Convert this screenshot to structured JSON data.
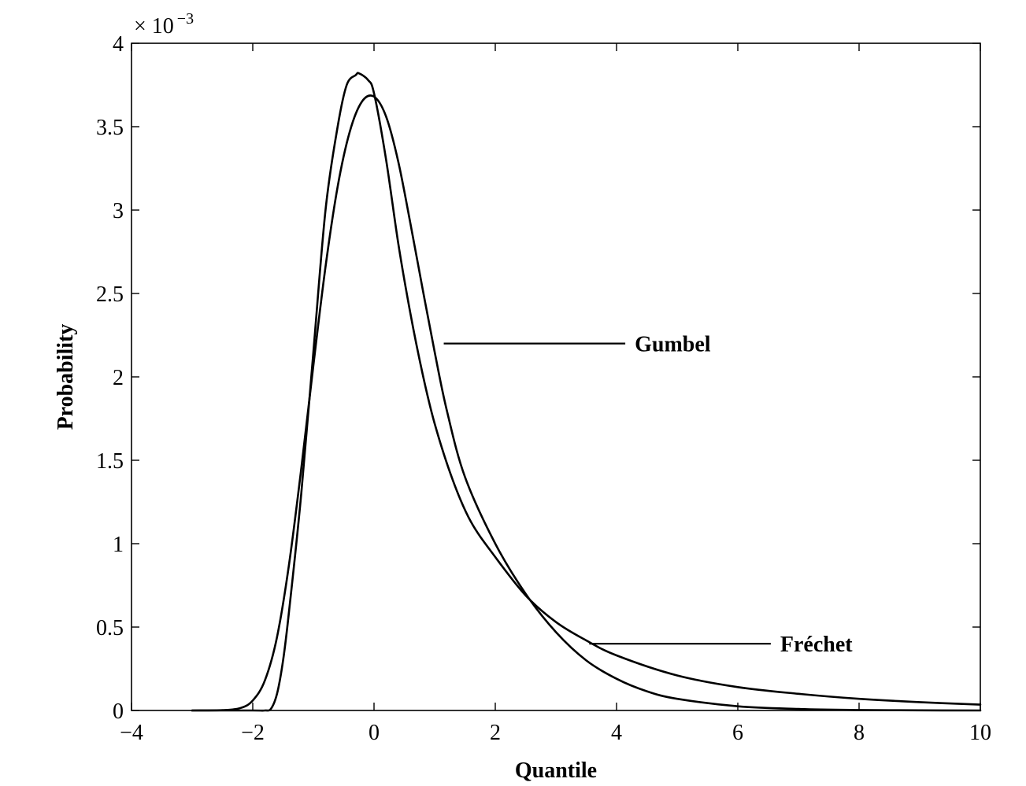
{
  "chart_data": {
    "type": "line",
    "xlabel": "Quantile",
    "ylabel": "Probability",
    "xlim": [
      -4,
      10
    ],
    "ylim": [
      0,
      4
    ],
    "xticks": [
      -4,
      -2,
      0,
      2,
      4,
      6,
      8,
      10
    ],
    "xtick_labels": [
      "−4",
      "−2",
      "0",
      "2",
      "4",
      "6",
      "8",
      "10"
    ],
    "yticks": [
      0,
      0.5,
      1,
      1.5,
      2,
      2.5,
      3,
      3.5,
      4
    ],
    "ytick_labels": [
      "0",
      "0.5",
      "1",
      "1.5",
      "2",
      "2.5",
      "3",
      "3.5",
      "4"
    ],
    "y_multiplier": {
      "base": "× 10",
      "exponent": "−3"
    },
    "grid": false,
    "legend": "none",
    "series": [
      {
        "name": "Gumbel",
        "x": [
          -3,
          -2.5,
          -2.2,
          -2.0,
          -1.8,
          -1.6,
          -1.4,
          -1.2,
          -1.0,
          -0.8,
          -0.6,
          -0.4,
          -0.2,
          0.0,
          0.2,
          0.4,
          0.6,
          0.8,
          1.0,
          1.2,
          1.5,
          2.0,
          2.5,
          3.0,
          3.5,
          4.0,
          4.5,
          5.0,
          6.0,
          7.0,
          8.0,
          9.0,
          10.0
        ],
        "values": [
          0.0,
          0.002,
          0.015,
          0.06,
          0.18,
          0.44,
          0.88,
          1.45,
          2.07,
          2.66,
          3.14,
          3.47,
          3.65,
          3.68,
          3.56,
          3.29,
          2.92,
          2.53,
          2.15,
          1.8,
          1.4,
          1.0,
          0.7,
          0.47,
          0.3,
          0.19,
          0.115,
          0.07,
          0.025,
          0.009,
          0.003,
          0.001,
          0.0
        ],
        "label_anchor": [
          1.15,
          2.2
        ],
        "label_position": [
          4.3,
          2.2
        ]
      },
      {
        "name": "Fréchet",
        "x": [
          -3,
          -2.0,
          -1.8,
          -1.7,
          -1.6,
          -1.5,
          -1.4,
          -1.2,
          -1.0,
          -0.8,
          -0.6,
          -0.45,
          -0.3,
          -0.25,
          -0.1,
          0.0,
          0.2,
          0.4,
          0.6,
          0.8,
          1.0,
          1.3,
          1.6,
          2.0,
          2.5,
          3.0,
          3.5,
          4.0,
          5.0,
          6.0,
          7.0,
          8.0,
          9.0,
          10.0
        ],
        "values": [
          0.0,
          0.0,
          0.0,
          0.01,
          0.1,
          0.3,
          0.6,
          1.3,
          2.15,
          3.0,
          3.5,
          3.75,
          3.81,
          3.82,
          3.78,
          3.7,
          3.3,
          2.8,
          2.38,
          2.02,
          1.72,
          1.38,
          1.13,
          0.92,
          0.69,
          0.53,
          0.42,
          0.33,
          0.21,
          0.14,
          0.1,
          0.07,
          0.05,
          0.035
        ],
        "label_anchor": [
          3.55,
          0.4
        ],
        "label_position": [
          6.7,
          0.4
        ]
      }
    ]
  }
}
